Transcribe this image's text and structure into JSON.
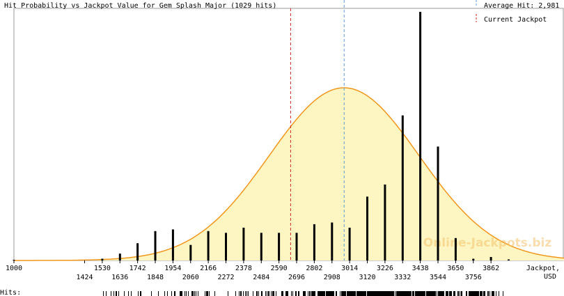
{
  "chart_data": {
    "type": "bar",
    "title": "Hit Probability vs Jackpot Value for Gem Splash Major (1029 hits)",
    "xlabel": "Jackpot,",
    "xunit": "USD",
    "xlim": [
      1000,
      4300
    ],
    "ylim": [
      0,
      73
    ],
    "legend": [
      {
        "label": "Average Hit: 2,981",
        "color": "#5b9bd5",
        "style": "dashed"
      },
      {
        "label": "Current Jackpot",
        "color": "#cc2222",
        "style": "dashed"
      }
    ],
    "average_hit": 2981,
    "current_jackpot": 2660,
    "curve": {
      "type": "normal",
      "mean": 2981,
      "sd": 450,
      "peak": 50,
      "fill": "#fdf6c3",
      "stroke": "#f0961a"
    },
    "bars": {
      "x": [
        1000,
        1530,
        1636,
        1742,
        1848,
        1954,
        2060,
        2166,
        2272,
        2378,
        2484,
        2590,
        2696,
        2802,
        2908,
        3014,
        3120,
        3226,
        3332,
        3438,
        3544,
        3650,
        3756,
        3862,
        3968
      ],
      "values": [
        0.2,
        0.5,
        2,
        5,
        8.5,
        9,
        4.5,
        8.5,
        8,
        9.5,
        8,
        8,
        8,
        10.5,
        11,
        9.5,
        18.5,
        22,
        42,
        72,
        33,
        6.5,
        0.5,
        1,
        0.3
      ]
    },
    "ticks_upper": [
      "1000",
      "1530",
      "1742",
      "1954",
      "2166",
      "2378",
      "2590",
      "2802",
      "3014",
      "3226",
      "3438",
      "3650",
      "3862"
    ],
    "ticks_lower": [
      "1424",
      "1636",
      "1848",
      "2060",
      "2272",
      "2484",
      "2696",
      "2908",
      "3120",
      "3332",
      "3544",
      "3756"
    ],
    "hits_label": "Hits:",
    "watermark": "Online-Jackpots.biz"
  }
}
